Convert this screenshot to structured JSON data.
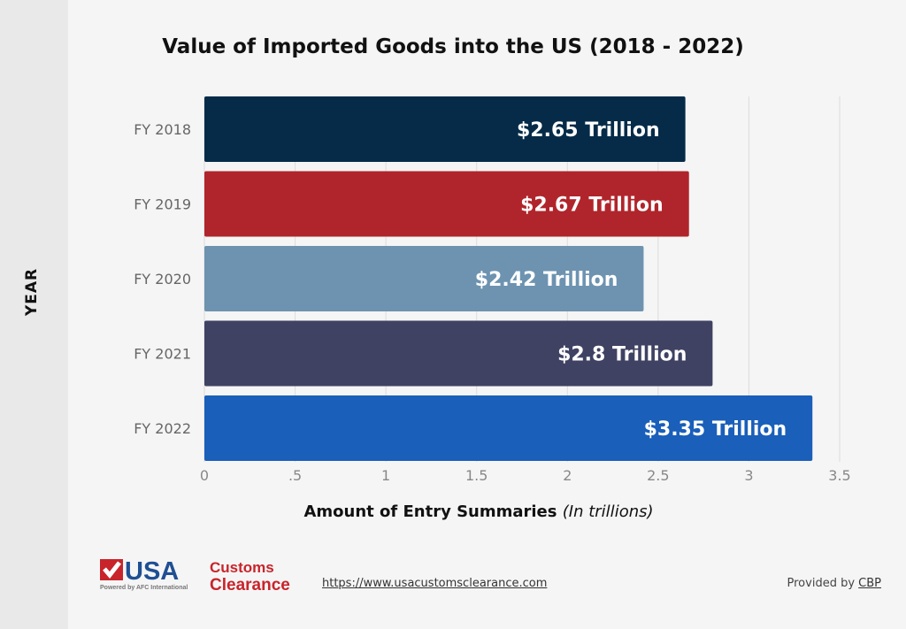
{
  "chart_data": {
    "type": "bar",
    "orientation": "horizontal",
    "title": "Value of Imported Goods into the US (2018 - 2022)",
    "xlabel": "Amount of Entry Summaries",
    "xlabel_note": "(In trillions)",
    "ylabel": "YEAR",
    "categories": [
      "FY 2018",
      "FY 2019",
      "FY 2020",
      "FY 2021",
      "FY 2022"
    ],
    "values": [
      2.65,
      2.67,
      2.42,
      2.8,
      3.35
    ],
    "data_labels": [
      "$2.65 Trillion",
      "$2.67 Trillion",
      "$2.42 Trillion",
      "$2.8 Trillion",
      "$3.35 Trillion"
    ],
    "colors": [
      "#052b48",
      "#b0252b",
      "#6d93b0",
      "#3f4262",
      "#1a5fb9"
    ],
    "xlim": [
      0,
      3.5
    ],
    "xticks": [
      0,
      0.5,
      1,
      1.5,
      2,
      2.5,
      3,
      3.5
    ],
    "xtick_labels": [
      "0",
      ".5",
      "1",
      "1.5",
      "2",
      "2.5",
      "3",
      "3.5"
    ],
    "grid": "vertical"
  },
  "footer": {
    "logo_text": "USA Customs Clearance",
    "logo_tagline": "Powered by AFC International",
    "url": "https://www.usacustomsclearance.com",
    "provided_by_prefix": "Provided by ",
    "provided_by_source": "CBP"
  }
}
